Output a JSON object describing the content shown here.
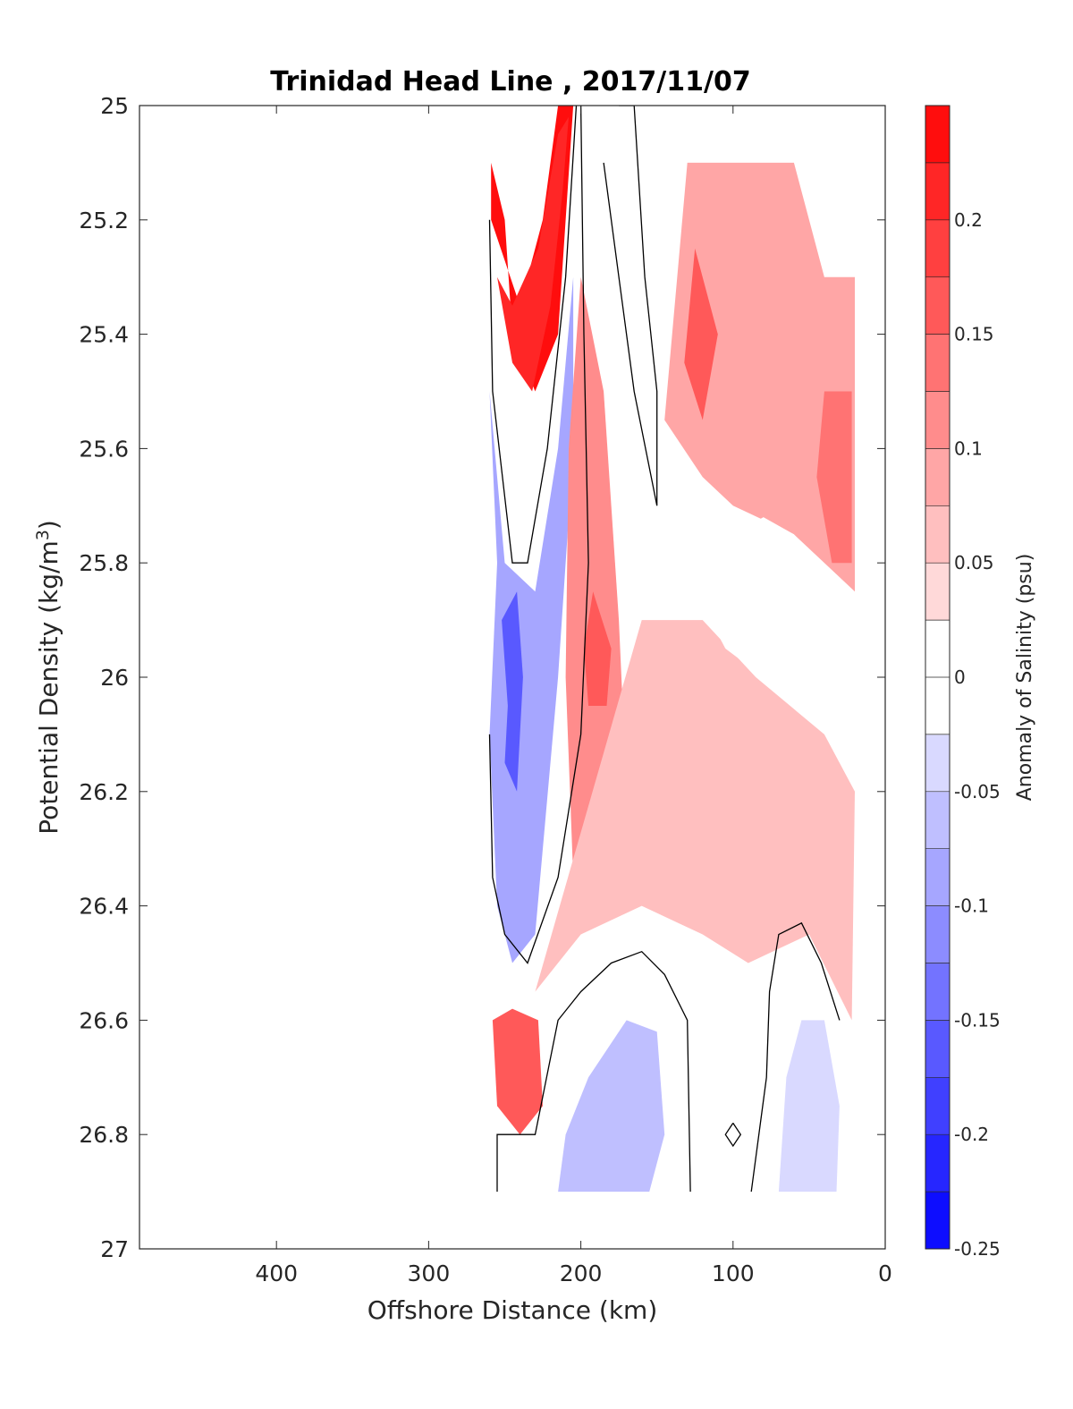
{
  "chart_data": {
    "type": "heatmap",
    "title": "Trinidad Head Line , 2017/11/07",
    "xlabel": "Offshore Distance (km)",
    "ylabel": "Potential Density (kg/m",
    "ylabel_superscript": "3",
    "ylabel_suffix": ")",
    "colorbar_label": "Anomaly of Salinity (psu)",
    "xlim": [
      490,
      0
    ],
    "ylim": [
      25,
      27
    ],
    "y_reversed": true,
    "grid": false,
    "x_ticks": [
      {
        "value": 400,
        "label": "400"
      },
      {
        "value": 300,
        "label": "300"
      },
      {
        "value": 200,
        "label": "200"
      },
      {
        "value": 100,
        "label": "100"
      },
      {
        "value": 0,
        "label": "0"
      }
    ],
    "y_ticks": [
      {
        "value": 25,
        "label": "25"
      },
      {
        "value": 25.2,
        "label": "25.2"
      },
      {
        "value": 25.4,
        "label": "25.4"
      },
      {
        "value": 25.6,
        "label": "25.6"
      },
      {
        "value": 25.8,
        "label": "25.8"
      },
      {
        "value": 26,
        "label": "26"
      },
      {
        "value": 26.2,
        "label": "26.2"
      },
      {
        "value": 26.4,
        "label": "26.4"
      },
      {
        "value": 26.6,
        "label": "26.6"
      },
      {
        "value": 26.8,
        "label": "26.8"
      },
      {
        "value": 27,
        "label": "27"
      }
    ],
    "colorbar": {
      "min": -0.25,
      "max": 0.25,
      "levels": 20,
      "colormap": "blue-white-red",
      "ticks": [
        {
          "value": 0.2,
          "label": "0.2"
        },
        {
          "value": 0.15,
          "label": "0.15"
        },
        {
          "value": 0.1,
          "label": "0.1"
        },
        {
          "value": 0.05,
          "label": "0.05"
        },
        {
          "value": 0,
          "label": "0"
        },
        {
          "value": -0.05,
          "label": "-0.05"
        },
        {
          "value": -0.1,
          "label": "-0.1"
        },
        {
          "value": -0.15,
          "label": "-0.15"
        },
        {
          "value": -0.2,
          "label": "-0.2"
        },
        {
          "value": -0.25,
          "label": "-0.25"
        }
      ]
    },
    "data_extent": {
      "x": [
        20,
        260
      ],
      "y": [
        25.0,
        26.9
      ]
    },
    "regions": [
      {
        "name": "red-upper-left",
        "value": 0.24,
        "points": [
          [
            259,
            25.1
          ],
          [
            250,
            25.2
          ],
          [
            245,
            25.4
          ],
          [
            230,
            25.5
          ],
          [
            215,
            25.4
          ],
          [
            210,
            25.2
          ],
          [
            205,
            25.0
          ],
          [
            200,
            25.0
          ],
          [
            215,
            25.0
          ],
          [
            225,
            25.2
          ],
          [
            240,
            25.35
          ],
          [
            259,
            25.2
          ]
        ]
      },
      {
        "name": "red-upper-core",
        "value": 0.2,
        "points": [
          [
            255,
            25.3
          ],
          [
            245,
            25.45
          ],
          [
            232,
            25.5
          ],
          [
            220,
            25.35
          ],
          [
            212,
            25.15
          ],
          [
            208,
            25.02
          ],
          [
            215,
            25.05
          ],
          [
            228,
            25.25
          ],
          [
            245,
            25.35
          ]
        ]
      },
      {
        "name": "blue-left-column",
        "value": -0.09,
        "points": [
          [
            260,
            25.5
          ],
          [
            255,
            25.8
          ],
          [
            260,
            26.1
          ],
          [
            255,
            26.4
          ],
          [
            245,
            26.5
          ],
          [
            230,
            26.45
          ],
          [
            215,
            26.0
          ],
          [
            205,
            25.6
          ],
          [
            205,
            25.3
          ],
          [
            215,
            25.6
          ],
          [
            230,
            25.85
          ],
          [
            250,
            25.8
          ]
        ]
      },
      {
        "name": "blue-left-core",
        "value": -0.17,
        "points": [
          [
            252,
            25.9
          ],
          [
            248,
            26.05
          ],
          [
            250,
            26.15
          ],
          [
            242,
            26.2
          ],
          [
            238,
            26.0
          ],
          [
            242,
            25.85
          ]
        ]
      },
      {
        "name": "red-middle-column",
        "value": 0.12,
        "points": [
          [
            200,
            25.3
          ],
          [
            185,
            25.5
          ],
          [
            175,
            25.9
          ],
          [
            170,
            26.2
          ],
          [
            185,
            26.4
          ],
          [
            205,
            26.35
          ],
          [
            210,
            26.0
          ],
          [
            208,
            25.6
          ]
        ]
      },
      {
        "name": "red-middle-core",
        "value": 0.16,
        "points": [
          [
            192,
            25.85
          ],
          [
            180,
            25.95
          ],
          [
            183,
            26.05
          ],
          [
            195,
            26.05
          ],
          [
            198,
            25.95
          ]
        ]
      },
      {
        "name": "red-right-upper",
        "value": 0.1,
        "points": [
          [
            130,
            25.1
          ],
          [
            60,
            25.1
          ],
          [
            40,
            25.3
          ],
          [
            20,
            25.3
          ],
          [
            20,
            25.85
          ],
          [
            60,
            25.75
          ],
          [
            100,
            25.7
          ],
          [
            120,
            25.65
          ],
          [
            145,
            25.55
          ]
        ]
      },
      {
        "name": "red-right-core",
        "value": 0.15,
        "points": [
          [
            125,
            25.25
          ],
          [
            110,
            25.4
          ],
          [
            120,
            25.55
          ],
          [
            132,
            25.45
          ]
        ]
      },
      {
        "name": "red-far-right",
        "value": 0.13,
        "points": [
          [
            40,
            25.5
          ],
          [
            22,
            25.5
          ],
          [
            22,
            25.8
          ],
          [
            35,
            25.8
          ],
          [
            45,
            25.65
          ]
        ]
      },
      {
        "name": "pink-right-lower",
        "value": 0.06,
        "points": [
          [
            160,
            25.9
          ],
          [
            120,
            25.9
          ],
          [
            85,
            26.0
          ],
          [
            40,
            26.1
          ],
          [
            20,
            26.2
          ],
          [
            22,
            26.6
          ],
          [
            50,
            26.45
          ],
          [
            90,
            26.5
          ],
          [
            120,
            26.45
          ],
          [
            160,
            26.4
          ],
          [
            200,
            26.45
          ],
          [
            230,
            26.55
          ]
        ]
      },
      {
        "name": "white-right-pocket",
        "value": 0.0,
        "points": [
          [
            115,
            25.8
          ],
          [
            100,
            25.75
          ],
          [
            80,
            25.72
          ],
          [
            60,
            25.75
          ],
          [
            58,
            25.95
          ],
          [
            80,
            26.0
          ],
          [
            105,
            25.95
          ],
          [
            115,
            25.9
          ]
        ]
      },
      {
        "name": "red-bottom-left",
        "value": 0.15,
        "points": [
          [
            258,
            26.6
          ],
          [
            255,
            26.75
          ],
          [
            240,
            26.8
          ],
          [
            225,
            26.75
          ],
          [
            228,
            26.6
          ],
          [
            245,
            26.58
          ]
        ]
      },
      {
        "name": "blue-bottom-mid",
        "value": -0.06,
        "points": [
          [
            215,
            26.9
          ],
          [
            210,
            26.8
          ],
          [
            195,
            26.7
          ],
          [
            170,
            26.6
          ],
          [
            150,
            26.62
          ],
          [
            145,
            26.8
          ],
          [
            155,
            26.9
          ]
        ]
      },
      {
        "name": "blue-bottom-right",
        "value": -0.05,
        "points": [
          [
            70,
            26.9
          ],
          [
            65,
            26.7
          ],
          [
            55,
            26.6
          ],
          [
            40,
            26.6
          ],
          [
            30,
            26.75
          ],
          [
            32,
            26.9
          ]
        ]
      }
    ],
    "contours": [
      {
        "name": "zero-contour-left",
        "value": 0,
        "points": [
          [
            260,
            25.2
          ],
          [
            258,
            25.5
          ],
          [
            245,
            25.8
          ],
          [
            235,
            25.8
          ],
          [
            222,
            25.6
          ],
          [
            210,
            25.3
          ],
          [
            203,
            25.0
          ]
        ]
      },
      {
        "name": "zero-contour-inner",
        "value": 0,
        "points": [
          [
            200,
            25.0
          ],
          [
            198,
            25.4
          ],
          [
            195,
            25.8
          ],
          [
            200,
            26.1
          ],
          [
            215,
            26.35
          ],
          [
            235,
            26.5
          ],
          [
            250,
            26.45
          ],
          [
            258,
            26.35
          ],
          [
            260,
            26.1
          ]
        ]
      },
      {
        "name": "zero-contour-tongue",
        "value": 0,
        "points": [
          [
            185,
            25.1
          ],
          [
            175,
            25.3
          ],
          [
            165,
            25.5
          ],
          [
            150,
            25.7
          ],
          [
            150,
            25.5
          ],
          [
            158,
            25.3
          ],
          [
            165,
            25.0
          ],
          [
            175,
            25.0
          ]
        ]
      },
      {
        "name": "zero-contour-bottom-left",
        "value": 0,
        "points": [
          [
            255,
            26.9
          ],
          [
            255,
            26.8
          ],
          [
            230,
            26.8
          ],
          [
            215,
            26.6
          ],
          [
            200,
            26.55
          ],
          [
            180,
            26.5
          ],
          [
            160,
            26.48
          ],
          [
            145,
            26.52
          ],
          [
            130,
            26.6
          ],
          [
            128,
            26.9
          ]
        ]
      },
      {
        "name": "zero-contour-bottom-right",
        "value": 0,
        "points": [
          [
            88,
            26.9
          ],
          [
            78,
            26.7
          ],
          [
            76,
            26.55
          ],
          [
            70,
            26.45
          ],
          [
            55,
            26.43
          ],
          [
            42,
            26.5
          ],
          [
            30,
            26.6
          ]
        ]
      },
      {
        "name": "zero-contour-diamond",
        "value": 0,
        "points": [
          [
            100,
            26.78
          ],
          [
            95,
            26.8
          ],
          [
            100,
            26.82
          ],
          [
            105,
            26.8
          ],
          [
            100,
            26.78
          ]
        ]
      }
    ]
  }
}
